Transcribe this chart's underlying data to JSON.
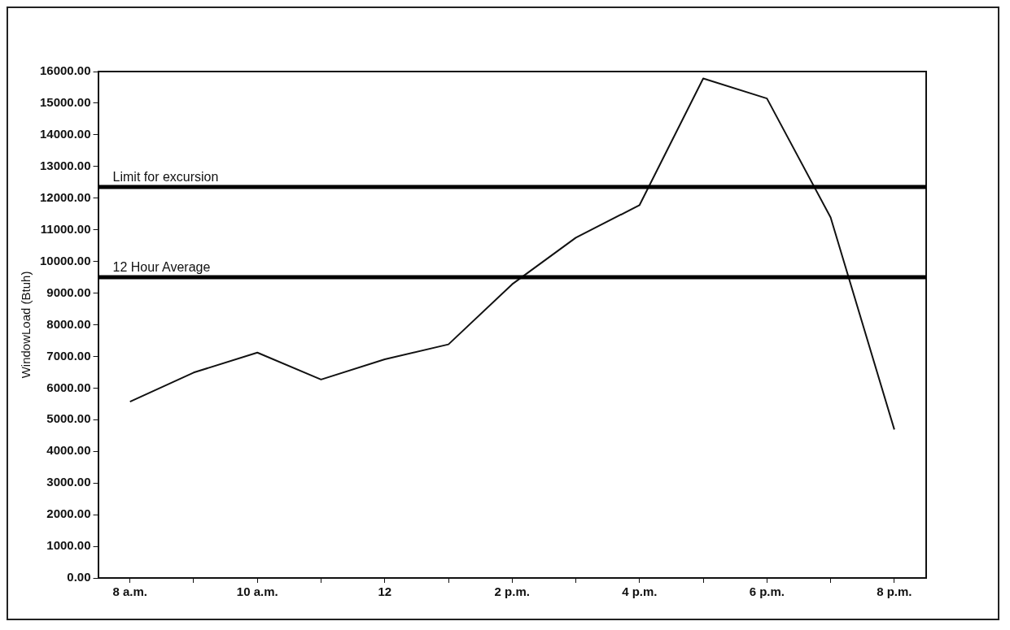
{
  "chart_data": {
    "type": "line",
    "ylabel": "WindowLoad (Btuh)",
    "categories": [
      "8 a.m.",
      null,
      "10 a.m.",
      null,
      "12",
      null,
      "2 p.m.",
      null,
      "4 p.m.",
      null,
      "6 p.m.",
      null,
      "8 p.m."
    ],
    "series": [
      {
        "color": "#111111",
        "values": [
          5570,
          6490,
          7120,
          6270,
          6910,
          7380,
          9280,
          10750,
          11780,
          15780,
          15150,
          11390,
          4690
        ]
      }
    ],
    "ylim": [
      0,
      16000
    ],
    "yticks": [
      {
        "value": 0,
        "label": "0.00"
      },
      {
        "value": 1000,
        "label": "1000.00"
      },
      {
        "value": 2000,
        "label": "2000.00"
      },
      {
        "value": 3000,
        "label": "3000.00"
      },
      {
        "value": 4000,
        "label": "4000.00"
      },
      {
        "value": 5000,
        "label": "5000.00"
      },
      {
        "value": 6000,
        "label": "6000.00"
      },
      {
        "value": 7000,
        "label": "7000.00"
      },
      {
        "value": 8000,
        "label": "8000.00"
      },
      {
        "value": 9000,
        "label": "9000.00"
      },
      {
        "value": 10000,
        "label": "10000.00"
      },
      {
        "value": 11000,
        "label": "11000.00"
      },
      {
        "value": 12000,
        "label": "12000.00"
      },
      {
        "value": 13000,
        "label": "13000.00"
      },
      {
        "value": 14000,
        "label": "14000.00"
      },
      {
        "value": 15000,
        "label": "15000.00"
      },
      {
        "value": 16000,
        "label": "16000.00"
      }
    ],
    "ref_lines": [
      {
        "axis": "y",
        "value": 12350,
        "label": "Limit for excursion",
        "color": "#000000"
      },
      {
        "axis": "y",
        "value": 9500,
        "label": "12 Hour Average",
        "color": "#000000"
      }
    ],
    "grid": false,
    "legend": false,
    "marker": "none",
    "line_style": "solid"
  }
}
